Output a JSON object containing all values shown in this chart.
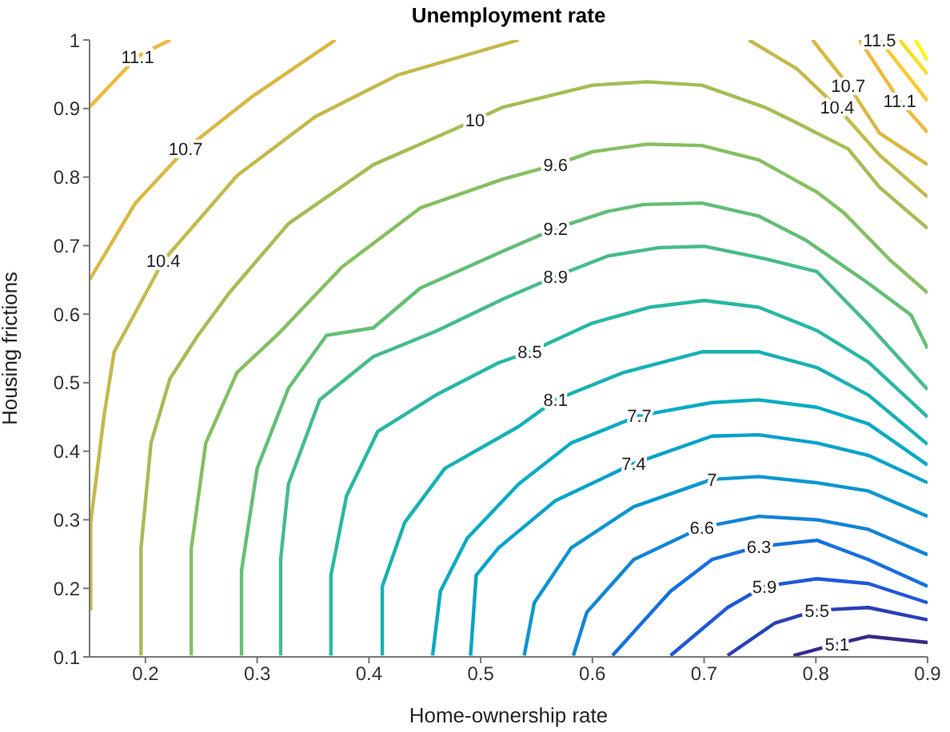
{
  "chart_data": {
    "type": "line",
    "title": "Unemployment rate",
    "xlabel": "Home-ownership rate",
    "ylabel": "Housing frictions",
    "xlim": [
      0.15,
      0.9
    ],
    "ylim": [
      0.1,
      1
    ],
    "xticks": [
      0.2,
      0.3,
      0.4,
      0.5,
      0.6,
      0.7,
      0.8,
      0.9
    ],
    "yticks": [
      0.1,
      0.2,
      0.3,
      0.4,
      0.5,
      0.6,
      0.7,
      0.8,
      0.9,
      1
    ],
    "grid": false,
    "legend": false,
    "marker": "none",
    "line_style": "solid",
    "series": [
      {
        "name": "5.1",
        "color": "#352a87",
        "x": [
          0.78,
          0.819,
          0.847,
          0.9
        ],
        "values": [
          0.102,
          0.119,
          0.13,
          0.121
        ]
      },
      {
        "name": "5.5",
        "color": "#2a3fb5",
        "x": [
          0.721,
          0.763,
          0.801,
          0.847,
          0.9
        ],
        "values": [
          0.102,
          0.149,
          0.168,
          0.172,
          0.154
        ]
      },
      {
        "name": "5.9",
        "color": "#1f58d8",
        "x": [
          0.67,
          0.721,
          0.754,
          0.801,
          0.847,
          0.9
        ],
        "values": [
          0.102,
          0.172,
          0.203,
          0.214,
          0.207,
          0.179
        ]
      },
      {
        "name": "6.3",
        "color": "#176fe0",
        "x": [
          0.618,
          0.67,
          0.707,
          0.749,
          0.801,
          0.847,
          0.9
        ],
        "values": [
          0.102,
          0.196,
          0.242,
          0.261,
          0.27,
          0.242,
          0.203
        ]
      },
      {
        "name": "6.6",
        "color": "#1284d6",
        "x": [
          0.583,
          0.595,
          0.637,
          0.698,
          0.749,
          0.801,
          0.847,
          0.9
        ],
        "values": [
          0.102,
          0.165,
          0.242,
          0.289,
          0.305,
          0.3,
          0.286,
          0.249
        ]
      },
      {
        "name": "7",
        "color": "#0b96d2",
        "x": [
          0.539,
          0.548,
          0.581,
          0.637,
          0.707,
          0.749,
          0.801,
          0.847,
          0.9
        ],
        "values": [
          0.102,
          0.179,
          0.259,
          0.319,
          0.359,
          0.363,
          0.354,
          0.342,
          0.305
        ]
      },
      {
        "name": "7.4",
        "color": "#06a2cc",
        "x": [
          0.491,
          0.496,
          0.516,
          0.567,
          0.637,
          0.707,
          0.749,
          0.801,
          0.847,
          0.9
        ],
        "values": [
          0.102,
          0.219,
          0.259,
          0.328,
          0.382,
          0.422,
          0.424,
          0.412,
          0.394,
          0.354
        ]
      },
      {
        "name": "7.7",
        "color": "#08abc2",
        "x": [
          0.457,
          0.464,
          0.488,
          0.534,
          0.581,
          0.642,
          0.707,
          0.749,
          0.801,
          0.847,
          0.9
        ],
        "values": [
          0.102,
          0.196,
          0.273,
          0.352,
          0.412,
          0.452,
          0.471,
          0.475,
          0.464,
          0.44,
          0.38
        ]
      },
      {
        "name": "8.1",
        "color": "#17b1b4",
        "x": [
          0.412,
          0.412,
          0.432,
          0.468,
          0.534,
          0.567,
          0.628,
          0.698,
          0.749,
          0.801,
          0.847,
          0.9
        ],
        "values": [
          0.102,
          0.203,
          0.296,
          0.375,
          0.436,
          0.475,
          0.515,
          0.545,
          0.545,
          0.522,
          0.482,
          0.41
        ]
      },
      {
        "name": "8.5",
        "color": "#28b8a2",
        "x": [
          0.366,
          0.366,
          0.38,
          0.408,
          0.46,
          0.516,
          0.544,
          0.6,
          0.651,
          0.7,
          0.749,
          0.801,
          0.847,
          0.9
        ],
        "values": [
          0.102,
          0.219,
          0.335,
          0.429,
          0.482,
          0.529,
          0.545,
          0.587,
          0.61,
          0.62,
          0.61,
          0.576,
          0.53,
          0.45
        ]
      },
      {
        "name": "8.9",
        "color": "#45bc8b",
        "x": [
          0.321,
          0.321,
          0.328,
          0.356,
          0.404,
          0.46,
          0.52,
          0.567,
          0.614,
          0.66,
          0.7,
          0.754,
          0.801,
          0.847,
          0.9
        ],
        "values": [
          0.102,
          0.242,
          0.352,
          0.475,
          0.538,
          0.575,
          0.622,
          0.655,
          0.685,
          0.697,
          0.699,
          0.681,
          0.662,
          0.585,
          0.49
        ]
      },
      {
        "name": "9.2",
        "color": "#63be76",
        "x": [
          0.286,
          0.286,
          0.3,
          0.328,
          0.362,
          0.404,
          0.446,
          0.52,
          0.567,
          0.614,
          0.646,
          0.698,
          0.749,
          0.791,
          0.847,
          0.885,
          0.9
        ],
        "values": [
          0.102,
          0.226,
          0.375,
          0.492,
          0.569,
          0.58,
          0.638,
          0.692,
          0.725,
          0.75,
          0.76,
          0.762,
          0.743,
          0.708,
          0.645,
          0.599,
          0.55
        ]
      },
      {
        "name": "9.6",
        "color": "#85bf62",
        "x": [
          0.241,
          0.241,
          0.254,
          0.282,
          0.32,
          0.376,
          0.446,
          0.52,
          0.567,
          0.6,
          0.649,
          0.698,
          0.749,
          0.801,
          0.825,
          0.867,
          0.9
        ],
        "values": [
          0.102,
          0.258,
          0.412,
          0.515,
          0.573,
          0.669,
          0.755,
          0.797,
          0.818,
          0.837,
          0.848,
          0.846,
          0.825,
          0.778,
          0.748,
          0.678,
          0.631
        ]
      },
      {
        "name": "10",
        "color": "#a4bd55",
        "x": [
          0.196,
          0.196,
          0.205,
          0.222,
          0.247,
          0.275,
          0.328,
          0.404,
          0.495,
          0.52,
          0.6,
          0.649,
          0.698,
          0.754,
          0.783,
          0.829,
          0.857,
          0.9
        ],
        "values": [
          0.102,
          0.258,
          0.412,
          0.506,
          0.569,
          0.631,
          0.732,
          0.818,
          0.883,
          0.902,
          0.934,
          0.939,
          0.934,
          0.902,
          0.879,
          0.841,
          0.785,
          0.725
        ]
      },
      {
        "name": "10.4",
        "color": "#c2ba4a",
        "x": [
          0.151,
          0.151,
          0.163,
          0.172,
          0.216,
          0.282,
          0.352,
          0.426,
          0.534
        ],
        "values": [
          0.168,
          0.296,
          0.452,
          0.545,
          0.678,
          0.802,
          0.888,
          0.949,
          1.0
        ]
      },
      {
        "name": "10.4",
        "color": "#c2ba4a",
        "x": [
          0.74,
          0.783,
          0.819,
          0.857,
          0.9
        ],
        "values": [
          1.0,
          0.958,
          0.902,
          0.832,
          0.771
        ]
      },
      {
        "name": "10.7",
        "color": "#dab742",
        "x": [
          0.15,
          0.191,
          0.236,
          0.296,
          0.37
        ],
        "values": [
          0.65,
          0.762,
          0.841,
          0.918,
          1.0
        ]
      },
      {
        "name": "10.7",
        "color": "#dab742",
        "x": [
          0.797,
          0.829,
          0.857,
          0.9
        ],
        "values": [
          1.0,
          0.934,
          0.864,
          0.818
        ]
      },
      {
        "name": "11.1",
        "color": "#efb93a",
        "x": [
          0.15,
          0.193,
          0.222
        ],
        "values": [
          0.902,
          0.976,
          1.0
        ]
      },
      {
        "name": "11.1",
        "color": "#efb93a",
        "x": [
          0.839,
          0.875,
          0.9
        ],
        "values": [
          1.0,
          0.911,
          0.865
        ]
      },
      {
        "name": "11.5",
        "color": "#fbc92d",
        "x": [
          0.857,
          0.9
        ],
        "values": [
          1.0,
          0.911
        ]
      },
      {
        "color": "#f8dd22",
        "x": [
          0.875,
          0.9
        ],
        "values": [
          1.0,
          0.95
        ]
      },
      {
        "color": "#f9f90f",
        "x": [
          0.889,
          0.9
        ],
        "values": [
          1.0,
          0.97
        ]
      }
    ]
  }
}
